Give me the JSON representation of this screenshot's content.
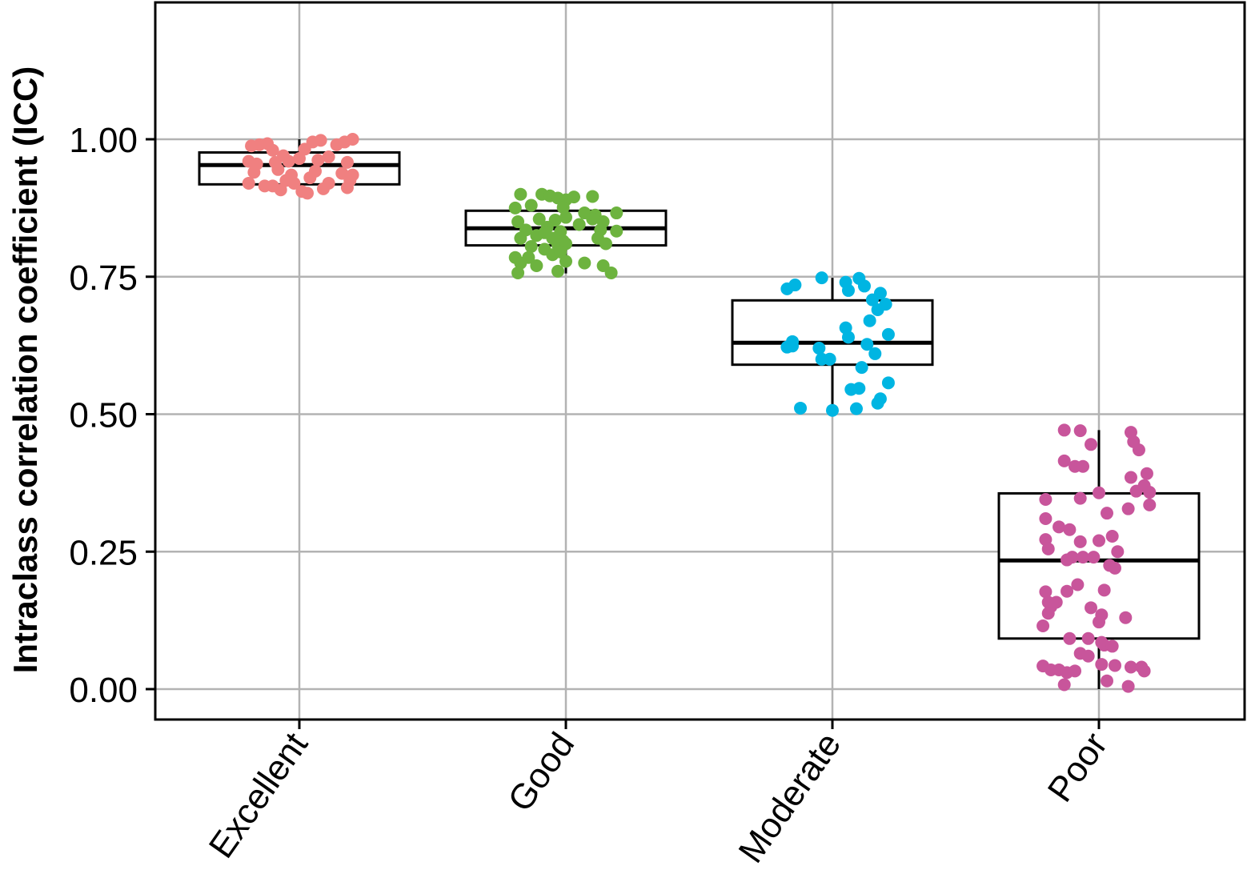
{
  "chart_data": {
    "type": "box",
    "title": "",
    "xlabel": "",
    "ylabel": "Intraclass correlation coefficient (ICC)",
    "ylim": [
      -0.055,
      1.25
    ],
    "yticks": [
      "0.00",
      "0.25",
      "0.50",
      "0.75",
      "1.00"
    ],
    "ytick_values": [
      0,
      0.25,
      0.5,
      0.75,
      1.0
    ],
    "grid": true,
    "categories": [
      "Excellent",
      "Good",
      "Moderate",
      "Poor"
    ],
    "colors": {
      "Excellent": "#F08080",
      "Good": "#6DB33F",
      "Moderate": "#00B5E2",
      "Poor": "#C8559B",
      "grid": "#b3b3b3",
      "box": "#000000"
    },
    "boxes": [
      {
        "category": "Excellent",
        "q1": 0.918,
        "median": 0.953,
        "q3": 0.976,
        "whisker_low": 0.903,
        "whisker_high": 1.0
      },
      {
        "category": "Good",
        "q1": 0.807,
        "median": 0.838,
        "q3": 0.87,
        "whisker_low": 0.756,
        "whisker_high": 0.901
      },
      {
        "category": "Moderate",
        "q1": 0.59,
        "median": 0.63,
        "q3": 0.707,
        "whisker_low": 0.507,
        "whisker_high": 0.748
      },
      {
        "category": "Poor",
        "q1": 0.092,
        "median": 0.234,
        "q3": 0.356,
        "whisker_low": 0.0,
        "whisker_high": 0.471
      }
    ],
    "points": {
      "Excellent": [
        {
          "x": -0.18,
          "y": 0.988
        },
        {
          "x": -0.15,
          "y": 0.99
        },
        {
          "x": -0.12,
          "y": 0.992
        },
        {
          "x": -0.1,
          "y": 0.98
        },
        {
          "x": -0.06,
          "y": 0.97
        },
        {
          "x": 0.02,
          "y": 0.982
        },
        {
          "x": 0.05,
          "y": 0.995
        },
        {
          "x": 0.08,
          "y": 0.998
        },
        {
          "x": 0.14,
          "y": 0.99
        },
        {
          "x": 0.17,
          "y": 0.995
        },
        {
          "x": 0.2,
          "y": 1.0
        },
        {
          "x": -0.19,
          "y": 0.96
        },
        {
          "x": -0.16,
          "y": 0.955
        },
        {
          "x": -0.09,
          "y": 0.958
        },
        {
          "x": -0.04,
          "y": 0.96
        },
        {
          "x": 0.0,
          "y": 0.965
        },
        {
          "x": 0.07,
          "y": 0.962
        },
        {
          "x": 0.11,
          "y": 0.968
        },
        {
          "x": 0.18,
          "y": 0.958
        },
        {
          "x": -0.17,
          "y": 0.94
        },
        {
          "x": -0.08,
          "y": 0.945
        },
        {
          "x": -0.03,
          "y": 0.935
        },
        {
          "x": 0.04,
          "y": 0.93
        },
        {
          "x": 0.06,
          "y": 0.942
        },
        {
          "x": 0.16,
          "y": 0.938
        },
        {
          "x": 0.2,
          "y": 0.935
        },
        {
          "x": -0.19,
          "y": 0.92
        },
        {
          "x": -0.13,
          "y": 0.915
        },
        {
          "x": -0.1,
          "y": 0.915
        },
        {
          "x": -0.07,
          "y": 0.908
        },
        {
          "x": -0.02,
          "y": 0.92
        },
        {
          "x": 0.01,
          "y": 0.905
        },
        {
          "x": 0.09,
          "y": 0.91
        },
        {
          "x": 0.11,
          "y": 0.92
        },
        {
          "x": 0.18,
          "y": 0.912
        },
        {
          "x": 0.19,
          "y": 0.925
        },
        {
          "x": 0.03,
          "y": 0.902
        },
        {
          "x": -0.05,
          "y": 0.925
        }
      ],
      "Good": [
        {
          "x": -0.17,
          "y": 0.9
        },
        {
          "x": -0.09,
          "y": 0.9
        },
        {
          "x": -0.06,
          "y": 0.897
        },
        {
          "x": -0.03,
          "y": 0.893
        },
        {
          "x": 0.0,
          "y": 0.89
        },
        {
          "x": 0.03,
          "y": 0.895
        },
        {
          "x": 0.1,
          "y": 0.896
        },
        {
          "x": -0.19,
          "y": 0.875
        },
        {
          "x": -0.13,
          "y": 0.88
        },
        {
          "x": -0.01,
          "y": 0.876
        },
        {
          "x": 0.07,
          "y": 0.866
        },
        {
          "x": 0.11,
          "y": 0.862
        },
        {
          "x": 0.19,
          "y": 0.866
        },
        {
          "x": -0.18,
          "y": 0.85
        },
        {
          "x": -0.1,
          "y": 0.855
        },
        {
          "x": -0.04,
          "y": 0.853
        },
        {
          "x": 0.0,
          "y": 0.858
        },
        {
          "x": 0.05,
          "y": 0.845
        },
        {
          "x": 0.1,
          "y": 0.855
        },
        {
          "x": 0.14,
          "y": 0.85
        },
        {
          "x": -0.15,
          "y": 0.835
        },
        {
          "x": -0.07,
          "y": 0.84
        },
        {
          "x": -0.02,
          "y": 0.832
        },
        {
          "x": 0.13,
          "y": 0.835
        },
        {
          "x": 0.19,
          "y": 0.833
        },
        {
          "x": -0.17,
          "y": 0.82
        },
        {
          "x": -0.11,
          "y": 0.825
        },
        {
          "x": -0.05,
          "y": 0.82
        },
        {
          "x": -0.01,
          "y": 0.815
        },
        {
          "x": 0.12,
          "y": 0.82
        },
        {
          "x": -0.13,
          "y": 0.805
        },
        {
          "x": -0.08,
          "y": 0.8
        },
        {
          "x": -0.03,
          "y": 0.808
        },
        {
          "x": 0.0,
          "y": 0.81
        },
        {
          "x": 0.15,
          "y": 0.81
        },
        {
          "x": -0.19,
          "y": 0.785
        },
        {
          "x": -0.14,
          "y": 0.785
        },
        {
          "x": -0.05,
          "y": 0.79
        },
        {
          "x": -0.02,
          "y": 0.795
        },
        {
          "x": -0.17,
          "y": 0.775
        },
        {
          "x": -0.11,
          "y": 0.77
        },
        {
          "x": 0.0,
          "y": 0.778
        },
        {
          "x": 0.07,
          "y": 0.775
        },
        {
          "x": 0.14,
          "y": 0.77
        },
        {
          "x": -0.18,
          "y": 0.757
        },
        {
          "x": -0.03,
          "y": 0.76
        },
        {
          "x": 0.17,
          "y": 0.757
        },
        {
          "x": -0.08,
          "y": 0.83
        }
      ],
      "Moderate": [
        {
          "x": -0.17,
          "y": 0.728
        },
        {
          "x": -0.14,
          "y": 0.735
        },
        {
          "x": -0.04,
          "y": 0.748
        },
        {
          "x": 0.05,
          "y": 0.74
        },
        {
          "x": 0.1,
          "y": 0.747
        },
        {
          "x": 0.06,
          "y": 0.725
        },
        {
          "x": 0.12,
          "y": 0.733
        },
        {
          "x": 0.15,
          "y": 0.708
        },
        {
          "x": 0.18,
          "y": 0.72
        },
        {
          "x": 0.2,
          "y": 0.7
        },
        {
          "x": 0.17,
          "y": 0.69
        },
        {
          "x": 0.14,
          "y": 0.67
        },
        {
          "x": 0.05,
          "y": 0.657
        },
        {
          "x": 0.21,
          "y": 0.645
        },
        {
          "x": 0.06,
          "y": 0.64
        },
        {
          "x": -0.15,
          "y": 0.632
        },
        {
          "x": -0.17,
          "y": 0.622
        },
        {
          "x": -0.15,
          "y": 0.624
        },
        {
          "x": -0.05,
          "y": 0.62
        },
        {
          "x": 0.13,
          "y": 0.627
        },
        {
          "x": 0.16,
          "y": 0.61
        },
        {
          "x": -0.04,
          "y": 0.6
        },
        {
          "x": -0.01,
          "y": 0.6
        },
        {
          "x": 0.11,
          "y": 0.585
        },
        {
          "x": 0.21,
          "y": 0.557
        },
        {
          "x": 0.07,
          "y": 0.545
        },
        {
          "x": 0.1,
          "y": 0.547
        },
        {
          "x": 0.18,
          "y": 0.528
        },
        {
          "x": 0.17,
          "y": 0.52
        },
        {
          "x": -0.12,
          "y": 0.511
        },
        {
          "x": 0.0,
          "y": 0.507
        },
        {
          "x": 0.09,
          "y": 0.51
        }
      ],
      "Poor": [
        {
          "x": -0.13,
          "y": 0.471
        },
        {
          "x": -0.07,
          "y": 0.47
        },
        {
          "x": 0.12,
          "y": 0.467
        },
        {
          "x": -0.03,
          "y": 0.445
        },
        {
          "x": 0.13,
          "y": 0.45
        },
        {
          "x": 0.15,
          "y": 0.435
        },
        {
          "x": -0.13,
          "y": 0.415
        },
        {
          "x": -0.09,
          "y": 0.405
        },
        {
          "x": -0.06,
          "y": 0.405
        },
        {
          "x": 0.18,
          "y": 0.392
        },
        {
          "x": 0.12,
          "y": 0.385
        },
        {
          "x": 0.17,
          "y": 0.37
        },
        {
          "x": 0.0,
          "y": 0.357
        },
        {
          "x": 0.14,
          "y": 0.36
        },
        {
          "x": 0.19,
          "y": 0.358
        },
        {
          "x": -0.2,
          "y": 0.345
        },
        {
          "x": -0.07,
          "y": 0.347
        },
        {
          "x": 0.19,
          "y": 0.335
        },
        {
          "x": 0.11,
          "y": 0.328
        },
        {
          "x": 0.03,
          "y": 0.32
        },
        {
          "x": -0.2,
          "y": 0.31
        },
        {
          "x": -0.15,
          "y": 0.295
        },
        {
          "x": -0.11,
          "y": 0.29
        },
        {
          "x": -0.2,
          "y": 0.272
        },
        {
          "x": -0.07,
          "y": 0.268
        },
        {
          "x": 0.0,
          "y": 0.27
        },
        {
          "x": 0.05,
          "y": 0.278
        },
        {
          "x": -0.19,
          "y": 0.255
        },
        {
          "x": -0.1,
          "y": 0.24
        },
        {
          "x": -0.12,
          "y": 0.235
        },
        {
          "x": -0.06,
          "y": 0.24
        },
        {
          "x": -0.02,
          "y": 0.24
        },
        {
          "x": 0.04,
          "y": 0.225
        },
        {
          "x": 0.06,
          "y": 0.22
        },
        {
          "x": 0.1,
          "y": 0.13
        },
        {
          "x": 0.07,
          "y": 0.25
        },
        {
          "x": -0.2,
          "y": 0.177
        },
        {
          "x": -0.12,
          "y": 0.178
        },
        {
          "x": -0.08,
          "y": 0.19
        },
        {
          "x": 0.02,
          "y": 0.18
        },
        {
          "x": -0.19,
          "y": 0.158
        },
        {
          "x": -0.18,
          "y": 0.15
        },
        {
          "x": -0.16,
          "y": 0.158
        },
        {
          "x": -0.19,
          "y": 0.138
        },
        {
          "x": -0.03,
          "y": 0.148
        },
        {
          "x": 0.01,
          "y": 0.135
        },
        {
          "x": 0.0,
          "y": 0.122
        },
        {
          "x": -0.21,
          "y": 0.115
        },
        {
          "x": -0.11,
          "y": 0.092
        },
        {
          "x": -0.04,
          "y": 0.092
        },
        {
          "x": 0.01,
          "y": 0.085
        },
        {
          "x": 0.02,
          "y": 0.08
        },
        {
          "x": 0.05,
          "y": 0.078
        },
        {
          "x": -0.07,
          "y": 0.065
        },
        {
          "x": -0.04,
          "y": 0.06
        },
        {
          "x": 0.01,
          "y": 0.045
        },
        {
          "x": 0.06,
          "y": 0.043
        },
        {
          "x": 0.12,
          "y": 0.04
        },
        {
          "x": 0.16,
          "y": 0.04
        },
        {
          "x": -0.21,
          "y": 0.042
        },
        {
          "x": -0.18,
          "y": 0.035
        },
        {
          "x": -0.15,
          "y": 0.035
        },
        {
          "x": -0.12,
          "y": 0.03
        },
        {
          "x": -0.09,
          "y": 0.033
        },
        {
          "x": 0.17,
          "y": 0.033
        },
        {
          "x": 0.03,
          "y": 0.015
        },
        {
          "x": -0.13,
          "y": 0.008
        },
        {
          "x": 0.11,
          "y": 0.005
        }
      ]
    }
  }
}
